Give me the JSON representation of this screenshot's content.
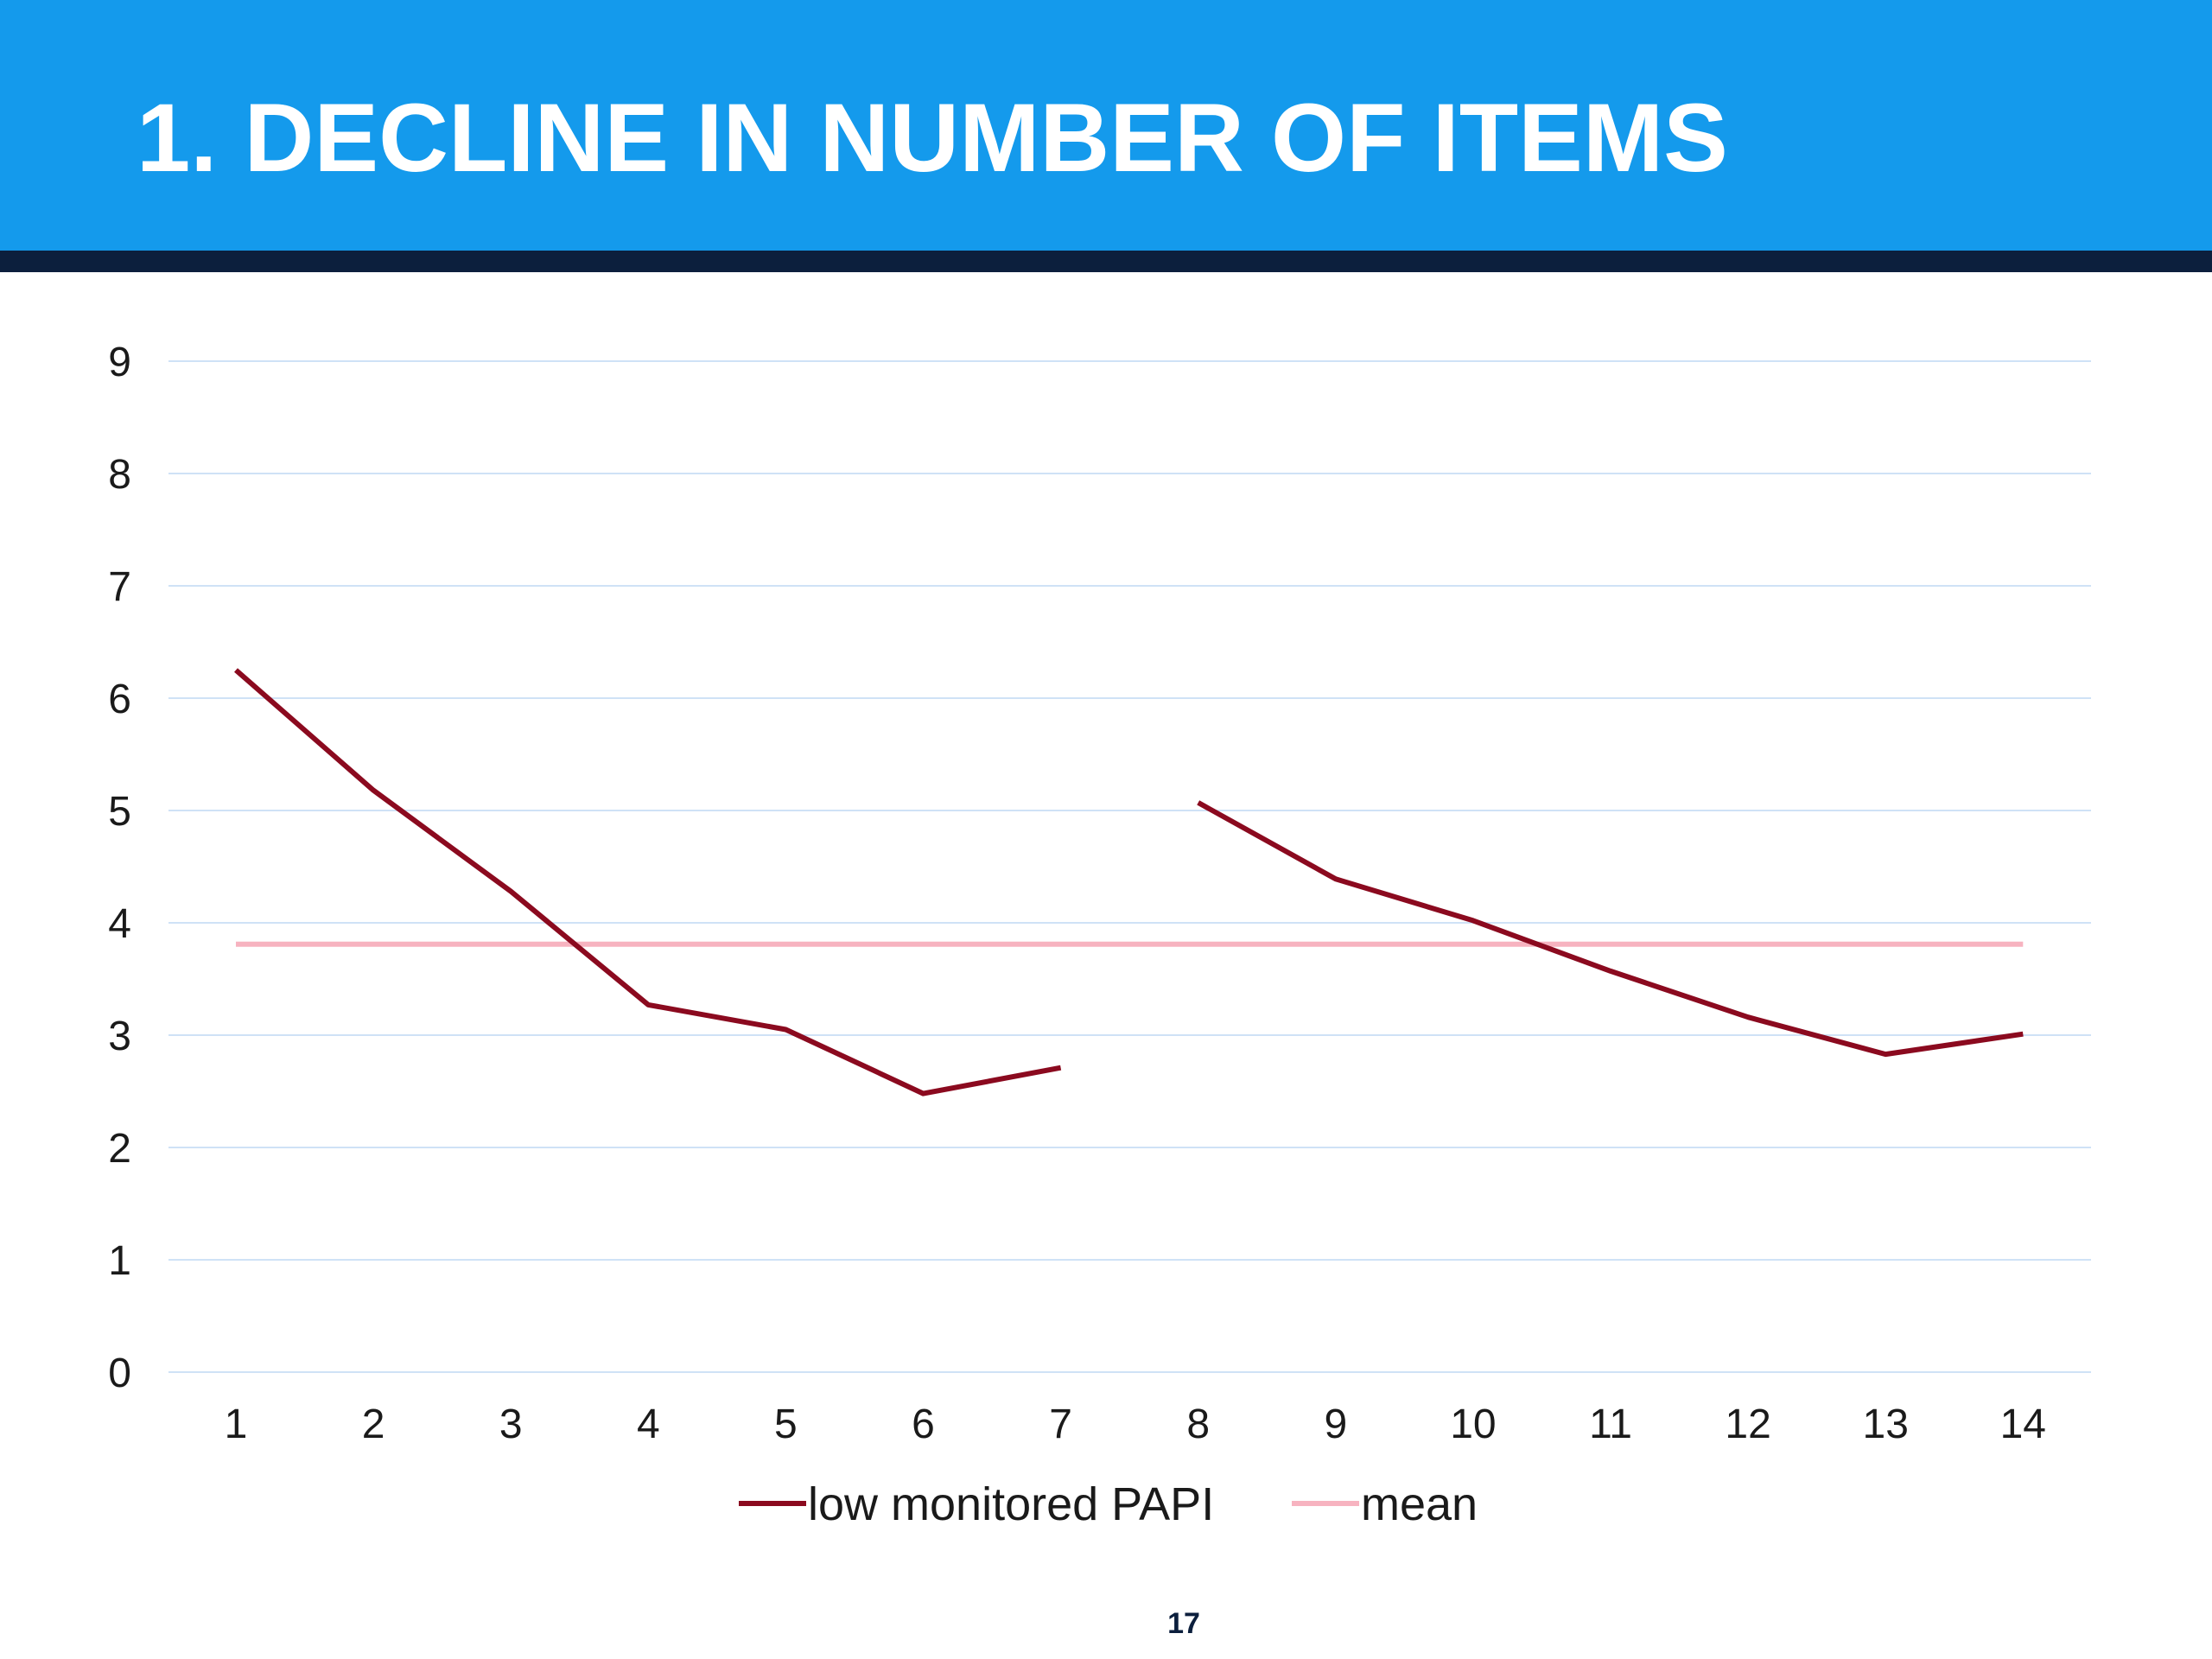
{
  "slide": {
    "title": "1. DECLINE IN NUMBER OF ITEMS",
    "page_number": "17",
    "colors": {
      "header": "#149aec",
      "header_rule": "#0c1f3d",
      "gridline": "#cfe2f6"
    }
  },
  "chart_data": {
    "type": "line",
    "title": "",
    "xlabel": "",
    "ylabel": "",
    "x": [
      1,
      2,
      3,
      4,
      5,
      6,
      7,
      8,
      9,
      10,
      11,
      12,
      13,
      14
    ],
    "ylim": [
      0,
      9
    ],
    "yticks": [
      0,
      1,
      2,
      3,
      4,
      5,
      6,
      7,
      8,
      9
    ],
    "grid": true,
    "legend_position": "bottom",
    "series": [
      {
        "name": "low monitored PAPI",
        "color": "#8b0a1f",
        "values": [
          6.25,
          5.18,
          4.28,
          3.27,
          3.05,
          2.48,
          2.71,
          5.07,
          4.39,
          4.02,
          3.57,
          3.16,
          2.83,
          3.01
        ],
        "segment_breaks_after_x": [
          7
        ]
      },
      {
        "name": "mean",
        "color": "#f7b3c0",
        "values": [
          3.81,
          3.81,
          3.81,
          3.81,
          3.81,
          3.81,
          3.81,
          3.81,
          3.81,
          3.81,
          3.81,
          3.81,
          3.81,
          3.81
        ]
      }
    ]
  }
}
